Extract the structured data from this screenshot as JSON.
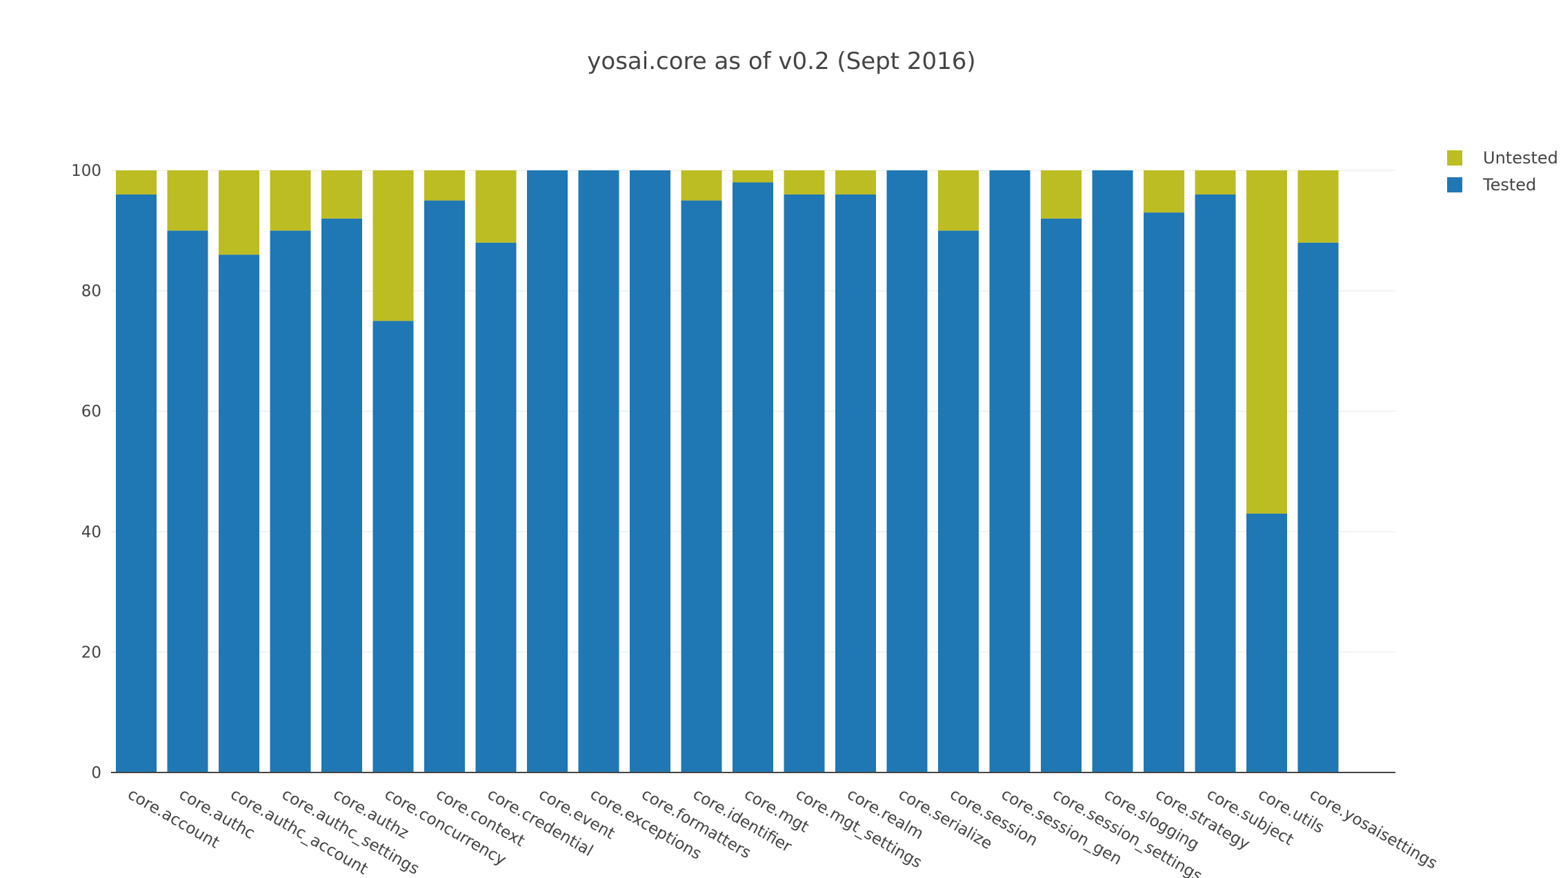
{
  "chart_data": {
    "type": "bar",
    "barmode": "stack",
    "title": "yosai.core as of v0.2 (Sept 2016)",
    "xlabel": "",
    "ylabel": "",
    "ylim": [
      0,
      100
    ],
    "yticks": [
      0,
      20,
      40,
      60,
      80,
      100
    ],
    "grid": true,
    "legend_position": "top-right",
    "categories": [
      "core.account",
      "core.authc",
      "core.authc_account",
      "core.authc_settings",
      "core.authz",
      "core.concurrency",
      "core.context",
      "core.credential",
      "core.event",
      "core.exceptions",
      "core.formatters",
      "core.identifier",
      "core.mgt",
      "core.mgt_settings",
      "core.realm",
      "core.serialize",
      "core.session",
      "core.session_gen",
      "core.session_settings",
      "core.slogging",
      "core.strategy",
      "core.subject",
      "core.utils",
      "core.yosaisettings"
    ],
    "series": [
      {
        "name": "Tested",
        "color": "#1f77b4",
        "values": [
          96,
          90,
          86,
          90,
          92,
          75,
          95,
          88,
          100,
          100,
          100,
          95,
          98,
          96,
          96,
          100,
          90,
          100,
          92,
          100,
          93,
          96,
          43,
          88
        ]
      },
      {
        "name": "Untested",
        "color": "#bcbd22",
        "values": [
          4,
          10,
          14,
          10,
          8,
          25,
          5,
          12,
          0,
          0,
          0,
          5,
          2,
          4,
          4,
          0,
          10,
          0,
          8,
          0,
          7,
          4,
          57,
          12
        ]
      }
    ],
    "legend_order": [
      "Untested",
      "Tested"
    ]
  }
}
